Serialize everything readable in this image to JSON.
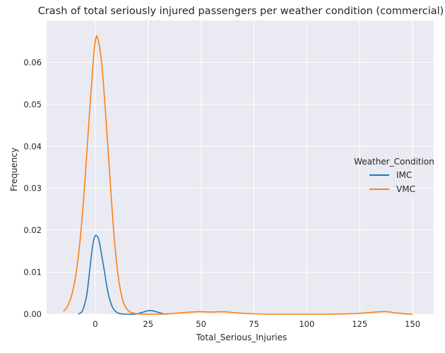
{
  "chart_data": {
    "type": "line",
    "title": "Crash of total seriously injured passengers per weather condition (commercial)",
    "xlabel": "Total_Serious_Injuries",
    "ylabel": "Frequency",
    "xlim": [
      -23,
      160
    ],
    "ylim": [
      0,
      0.07
    ],
    "xticks": [
      0,
      25,
      50,
      75,
      100,
      125,
      150
    ],
    "yticks": [
      0.0,
      0.01,
      0.02,
      0.03,
      0.04,
      0.05,
      0.06
    ],
    "ytick_labels": [
      "0.00",
      "0.01",
      "0.02",
      "0.03",
      "0.04",
      "0.05",
      "0.06"
    ],
    "grid": true,
    "legend": {
      "title": "Weather_Condition",
      "placement": "center-right"
    },
    "series": [
      {
        "name": "IMC",
        "color": "#1f77b4",
        "x": [
          -8,
          -6,
          -4,
          -2,
          -1,
          0,
          1,
          2,
          4,
          6,
          8,
          10,
          12,
          14,
          16,
          18,
          20,
          22,
          24,
          26,
          28,
          30,
          32,
          34
        ],
        "y": [
          0,
          0.0009,
          0.0047,
          0.0133,
          0.017,
          0.0187,
          0.0185,
          0.017,
          0.0112,
          0.0052,
          0.0018,
          0.0005,
          0.0001,
          0,
          0,
          0,
          0.0001,
          0.0004,
          0.0007,
          0.0009,
          0.0007,
          0.0004,
          0.0001,
          0
        ]
      },
      {
        "name": "VMC",
        "color": "#ff7f0e",
        "x": [
          -15,
          -13,
          -11,
          -9,
          -7,
          -5,
          -3,
          -1,
          0,
          1,
          3,
          5,
          7,
          9,
          11,
          13,
          15,
          17,
          20,
          25,
          30,
          35,
          40,
          45,
          50,
          55,
          60,
          65,
          70,
          75,
          80,
          90,
          100,
          110,
          120,
          125,
          130,
          135,
          138,
          142,
          146,
          150
        ],
        "y": [
          0.0007,
          0.002,
          0.0048,
          0.01,
          0.0185,
          0.031,
          0.046,
          0.06,
          0.065,
          0.066,
          0.06,
          0.047,
          0.032,
          0.018,
          0.0085,
          0.0033,
          0.0012,
          0.0004,
          0.0001,
          0,
          0,
          0.0001,
          0.0003,
          0.0005,
          0.0006,
          0.0005,
          0.0006,
          0.0004,
          0.0002,
          0.0001,
          0,
          0,
          0,
          0,
          0.0001,
          0.0002,
          0.0004,
          0.0006,
          0.0006,
          0.0003,
          0.0001,
          0
        ]
      }
    ]
  }
}
